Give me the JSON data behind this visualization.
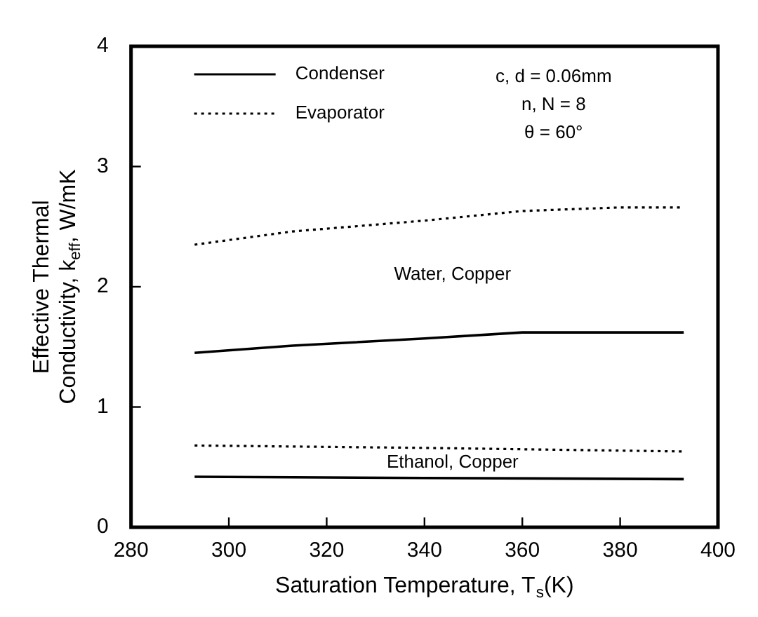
{
  "chart_data": {
    "type": "line",
    "xlabel": "Saturation Temperature, T$_{s}$(K)",
    "ylabel": "Effective Thermal Conductivity, k$_{eff}$, W/mK",
    "xlim": [
      280,
      400
    ],
    "ylim": [
      0,
      4
    ],
    "xticks": [
      280,
      300,
      320,
      340,
      360,
      380,
      400
    ],
    "yticks": [
      0,
      1,
      2,
      3,
      4
    ],
    "grid": false,
    "legend": "top left",
    "marker": "none",
    "series": [
      {
        "name": "Condenser",
        "color": "#000000",
        "line_style": "solid",
        "x": [
          293,
          313,
          340,
          360,
          393
        ],
        "values": [
          1.45,
          1.51,
          1.57,
          1.62,
          1.62
        ]
      },
      {
        "name": "Evaporator",
        "color": "#000000",
        "line_style": "dotted",
        "x": [
          293,
          313,
          340,
          360,
          380,
          393
        ],
        "values": [
          2.35,
          2.46,
          2.55,
          2.63,
          2.66,
          2.66
        ]
      },
      {
        "color": "#000000",
        "line_style": "solid",
        "x": [
          293,
          340,
          393
        ],
        "values": [
          0.42,
          0.41,
          0.4
        ]
      },
      {
        "color": "#000000",
        "line_style": "dotted",
        "x": [
          293,
          340,
          393
        ],
        "values": [
          0.68,
          0.66,
          0.63
        ]
      }
    ],
    "annotations": [
      "c, d = 0.06mm\nn, N = 8\nθ = 60°",
      "Water, Copper",
      "Ethanol, Copper"
    ]
  }
}
